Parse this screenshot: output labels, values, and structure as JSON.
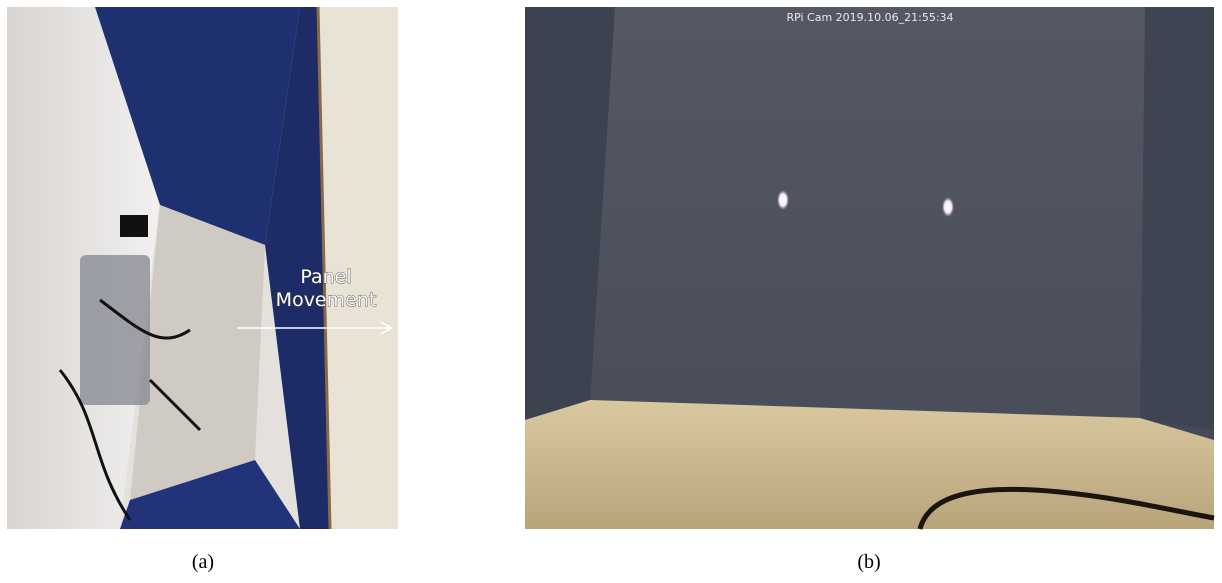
{
  "panels": [
    {
      "caption": "(a)",
      "annotation": [
        "Panel",
        "Movement"
      ]
    },
    {
      "caption": "(b)",
      "overlay": "RPi Cam 2019.10.06_21:55:34"
    }
  ]
}
